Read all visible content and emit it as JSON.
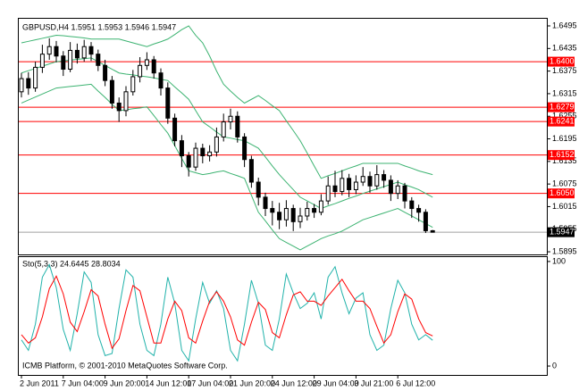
{
  "chart_data": [
    {
      "type": "candlestick",
      "title": "GBPUSD,H4  1.5951 1.5953 1.5946 1.5947",
      "categories": [
        "2 Jun 2011",
        null,
        null,
        null,
        null,
        null,
        "7 Jun 04:00",
        null,
        null,
        null,
        null,
        null,
        "9 Jun 20:00",
        null,
        null,
        null,
        null,
        null,
        "14 Jun 12:00",
        null,
        null,
        null,
        null,
        null,
        "17 Jun 04:00",
        null,
        null,
        null,
        null,
        null,
        "21 Jun 20:00",
        null,
        null,
        null,
        null,
        null,
        "24 Jun 12:00",
        null,
        null,
        null,
        null,
        null,
        "29 Jun 04:00",
        null,
        null,
        null,
        null,
        null,
        "3 Jul 21:00",
        null,
        null,
        null,
        null,
        null,
        "6 Jul 12:00",
        null,
        null,
        null,
        null,
        null
      ],
      "open": [
        1.632,
        1.6355,
        1.633,
        1.6385,
        1.642,
        1.644,
        1.6415,
        1.638,
        1.643,
        1.641,
        1.644,
        1.642,
        1.639,
        1.635,
        1.629,
        1.627,
        1.632,
        1.636,
        1.639,
        1.6405,
        1.637,
        1.633,
        1.625,
        1.619,
        1.615,
        1.612,
        1.617,
        1.615,
        1.616,
        1.62,
        1.624,
        1.6255,
        1.62,
        1.614,
        1.608,
        1.604,
        1.601,
        1.6,
        1.598,
        1.601,
        1.5975,
        1.599,
        1.601,
        1.6,
        1.603,
        1.607,
        1.6055,
        1.609,
        1.606,
        1.608,
        1.6095,
        1.607,
        1.61,
        1.6085,
        1.605,
        1.607,
        1.603,
        1.601,
        1.6,
        1.5951
      ],
      "high": [
        1.637,
        1.6372,
        1.64,
        1.6445,
        1.6462,
        1.6455,
        1.6428,
        1.6452,
        1.6448,
        1.6458,
        1.6452,
        1.6432,
        1.6405,
        1.6362,
        1.6305,
        1.6335,
        1.6378,
        1.6412,
        1.6425,
        1.6415,
        1.6382,
        1.6345,
        1.6262,
        1.6205,
        1.616,
        1.6185,
        1.6182,
        1.6178,
        1.6225,
        1.6262,
        1.6275,
        1.6268,
        1.621,
        1.615,
        1.6092,
        1.6052,
        1.603,
        1.6025,
        1.6032,
        1.602,
        1.6012,
        1.6028,
        1.6022,
        1.6048,
        1.6095,
        1.611,
        1.6112,
        1.6102,
        1.6098,
        1.612,
        1.6108,
        1.6125,
        1.6112,
        1.6098,
        1.6085,
        1.6078,
        1.604,
        1.602,
        1.6008,
        1.5953
      ],
      "low": [
        1.6305,
        1.6312,
        1.632,
        1.637,
        1.6405,
        1.6398,
        1.6362,
        1.6372,
        1.6395,
        1.64,
        1.6402,
        1.6375,
        1.6335,
        1.6275,
        1.624,
        1.6255,
        1.631,
        1.6345,
        1.6378,
        1.6355,
        1.631,
        1.6235,
        1.6175,
        1.612,
        1.6095,
        1.611,
        1.613,
        1.6135,
        1.6148,
        1.6188,
        1.622,
        1.6185,
        1.612,
        1.6065,
        1.6018,
        1.599,
        1.5965,
        1.5955,
        1.5962,
        1.595,
        1.5958,
        1.5978,
        1.5985,
        1.5992,
        1.602,
        1.604,
        1.6045,
        1.604,
        1.6048,
        1.607,
        1.6052,
        1.606,
        1.6065,
        1.603,
        1.6035,
        1.601,
        1.5985,
        1.5975,
        1.5945,
        1.5946
      ],
      "close": [
        1.6355,
        1.633,
        1.6385,
        1.642,
        1.644,
        1.6415,
        1.638,
        1.643,
        1.641,
        1.644,
        1.642,
        1.639,
        1.635,
        1.629,
        1.627,
        1.632,
        1.636,
        1.639,
        1.6405,
        1.637,
        1.633,
        1.625,
        1.619,
        1.615,
        1.612,
        1.617,
        1.615,
        1.616,
        1.62,
        1.624,
        1.6255,
        1.62,
        1.614,
        1.608,
        1.604,
        1.601,
        1.6,
        1.598,
        1.601,
        1.5975,
        1.599,
        1.601,
        1.6,
        1.603,
        1.607,
        1.6055,
        1.609,
        1.606,
        1.608,
        1.6095,
        1.607,
        1.61,
        1.6085,
        1.605,
        1.607,
        1.603,
        1.601,
        1.6,
        1.5951,
        1.5947
      ],
      "candle_color": "#000000",
      "bands": {
        "color": "#3cb371",
        "upper": [
          1.645,
          1.6454,
          1.6458,
          1.6462,
          1.6466,
          1.647,
          1.6469,
          1.6467,
          1.6465,
          1.6463,
          1.646,
          1.646,
          1.646,
          1.646,
          1.646,
          1.6455,
          1.645,
          1.6445,
          1.644,
          1.6447,
          1.6453,
          1.646,
          1.6472,
          1.6485,
          1.6495,
          1.647,
          1.645,
          1.6415,
          1.6375,
          1.634,
          1.6322,
          1.6305,
          1.629,
          1.63,
          1.631,
          1.6297,
          1.6283,
          1.627,
          1.6243,
          1.6217,
          1.619,
          1.6157,
          1.6123,
          1.609,
          1.6097,
          1.6103,
          1.611,
          1.6117,
          1.6123,
          1.613,
          1.613,
          1.613,
          1.613,
          1.613,
          1.613,
          1.6123,
          1.6117,
          1.611,
          1.6105,
          1.61
        ],
        "middle": [
          1.637,
          1.6376,
          1.6382,
          1.6388,
          1.6394,
          1.64,
          1.6402,
          1.6404,
          1.6406,
          1.6408,
          1.641,
          1.64,
          1.639,
          1.638,
          1.637,
          1.6367,
          1.6365,
          1.6362,
          1.636,
          1.6357,
          1.6353,
          1.635,
          1.6333,
          1.6317,
          1.63,
          1.627,
          1.624,
          1.6227,
          1.6213,
          1.62,
          1.6197,
          1.6193,
          1.619,
          1.618,
          1.617,
          1.6147,
          1.6123,
          1.61,
          1.608,
          1.606,
          1.604,
          1.603,
          1.602,
          1.601,
          1.6017,
          1.6023,
          1.603,
          1.6037,
          1.6043,
          1.605,
          1.6056,
          1.6062,
          1.6068,
          1.6074,
          1.608,
          1.6073,
          1.6067,
          1.606,
          1.605,
          1.604
        ],
        "lower": [
          1.629,
          1.6298,
          1.6306,
          1.6314,
          1.6322,
          1.633,
          1.6332,
          1.6334,
          1.6336,
          1.6338,
          1.634,
          1.6322,
          1.6305,
          1.6287,
          1.627,
          1.6272,
          1.6275,
          1.6277,
          1.628,
          1.6257,
          1.6233,
          1.621,
          1.6177,
          1.6143,
          1.611,
          1.6105,
          1.61,
          1.6103,
          1.6107,
          1.611,
          1.6103,
          1.6097,
          1.609,
          1.6045,
          1.6,
          1.5977,
          1.5953,
          1.593,
          1.592,
          1.591,
          1.59,
          1.591,
          1.592,
          1.593,
          1.5937,
          1.5943,
          1.595,
          1.596,
          1.597,
          1.598,
          1.5986,
          1.5992,
          1.5998,
          1.6004,
          1.601,
          1.6,
          1.599,
          1.598,
          1.597,
          1.596
        ]
      },
      "levels": [
        {
          "value": 1.64,
          "label": "1.6400"
        },
        1.6279,
        1.6241,
        1.6152,
        {
          "value": 1.605,
          "label": "1.6050"
        }
      ],
      "level_color": "#ff0000",
      "bid": 1.5947,
      "ylim": [
        1.5888,
        1.6514
      ],
      "yticks": [
        1.6495,
        1.6435,
        1.6375,
        1.6315,
        1.6255,
        1.6195,
        1.6135,
        1.6075,
        1.6015,
        1.5955,
        1.5895
      ]
    },
    {
      "type": "line",
      "title": "Sto(5,3,3) 24.6445 28.8034",
      "annotation": "ICMB Platform, © 2001-2010 MetaQuotes Software Corp.",
      "series": [
        {
          "color": "#20b2aa",
          "values": [
            25,
            15,
            40,
            85,
            97,
            75,
            35,
            15,
            50,
            90,
            80,
            30,
            10,
            12,
            55,
            92,
            85,
            40,
            15,
            10,
            40,
            85,
            60,
            15,
            5,
            45,
            80,
            60,
            72,
            55,
            15,
            5,
            40,
            82,
            60,
            20,
            15,
            45,
            88,
            70,
            55,
            60,
            70,
            45,
            85,
            95,
            70,
            50,
            65,
            70,
            30,
            15,
            20,
            55,
            82,
            70,
            40,
            25,
            30,
            24.6445
          ]
        },
        {
          "color": "#ff0000",
          "values": [
            30,
            22,
            27,
            47,
            74,
            86,
            69,
            42,
            33,
            52,
            73,
            67,
            40,
            17,
            26,
            53,
            77,
            72,
            47,
            22,
            22,
            45,
            62,
            53,
            27,
            22,
            43,
            62,
            71,
            62,
            47,
            25,
            20,
            42,
            61,
            54,
            32,
            27,
            49,
            68,
            71,
            62,
            62,
            58,
            67,
            75,
            83,
            72,
            62,
            62,
            55,
            38,
            22,
            30,
            52,
            69,
            64,
            45,
            32,
            28.8034
          ]
        }
      ],
      "ylim": [
        -8.5,
        104.2
      ],
      "yticks": [
        0,
        100
      ]
    }
  ]
}
